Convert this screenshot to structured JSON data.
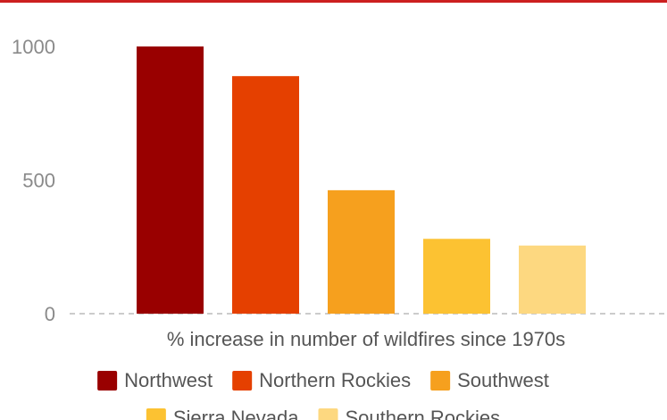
{
  "chart_data": {
    "type": "bar",
    "title": "",
    "xlabel": "% increase in number of wildfires since 1970s",
    "ylabel": "",
    "ylim": [
      0,
      1000
    ],
    "yticks": [
      0,
      500,
      1000
    ],
    "grid": false,
    "legend_position": "bottom",
    "categories": [
      "Northwest",
      "Northern Rockies",
      "Southwest",
      "Sierra Nevada",
      "Southern Rockies"
    ],
    "values": [
      1000,
      889,
      462,
      280,
      255
    ],
    "colors": [
      "#990000",
      "#e54000",
      "#f6a01e",
      "#fcc232",
      "#fdd880"
    ]
  },
  "colors": {
    "accent": "#cc1f1f",
    "baseline": "#bbbbbb"
  }
}
